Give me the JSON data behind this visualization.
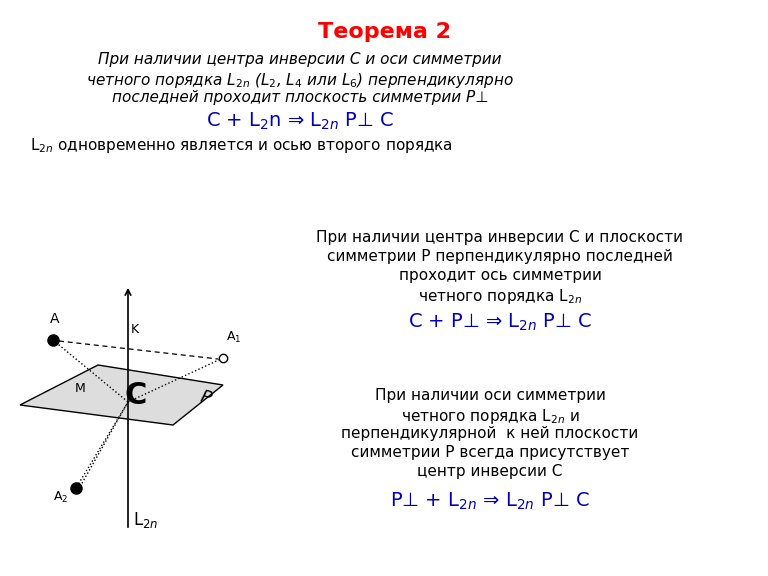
{
  "title": "Теорема 2",
  "title_color": "#FF0000",
  "title_fontsize": 16,
  "bg_color": "#FFFFFF",
  "text_color": "#000000",
  "blue_color": "#0000BB",
  "block1_line1": "При наличии центра инверсии С и оси симметрии",
  "block1_line2": "четного порядка L$_{2n}$ (L$_2$, L$_4$ или L$_6$) перпендикулярно",
  "block1_line3": "последней проходит плоскость симметрии P⊥",
  "block1_formula": "C + L$_2$n ⇒ L$_{2n}$ P⊥ C",
  "block1_extra_pre": "L$_{2n}$",
  "block1_extra_post": " одновременно является и осью второго порядка",
  "block2_line1": "При наличии центра инверсии С и плоскости",
  "block2_line2": "симметрии Р перпендикулярно последней",
  "block2_line3": "проходит ось симметрии",
  "block2_line4": "четного порядка L$_{2n}$",
  "block2_formula": "C + P⊥ ⇒ L$_{2n}$ P⊥ C",
  "block3_line1": "При наличии оси симметрии",
  "block3_line2": "четного порядка L$_{2n}$ и",
  "block3_line3": "перпендикулярной  к ней плоскости",
  "block3_line4": "симметрии Р всегда присутствует",
  "block3_line5": "центр инверсии С",
  "block3_formula": "P⊥ + L$_{2n}$ ⇒ L$_{2n}$ P⊥ C",
  "plane_color": "#D0D0D0",
  "axis_color": "#000000"
}
